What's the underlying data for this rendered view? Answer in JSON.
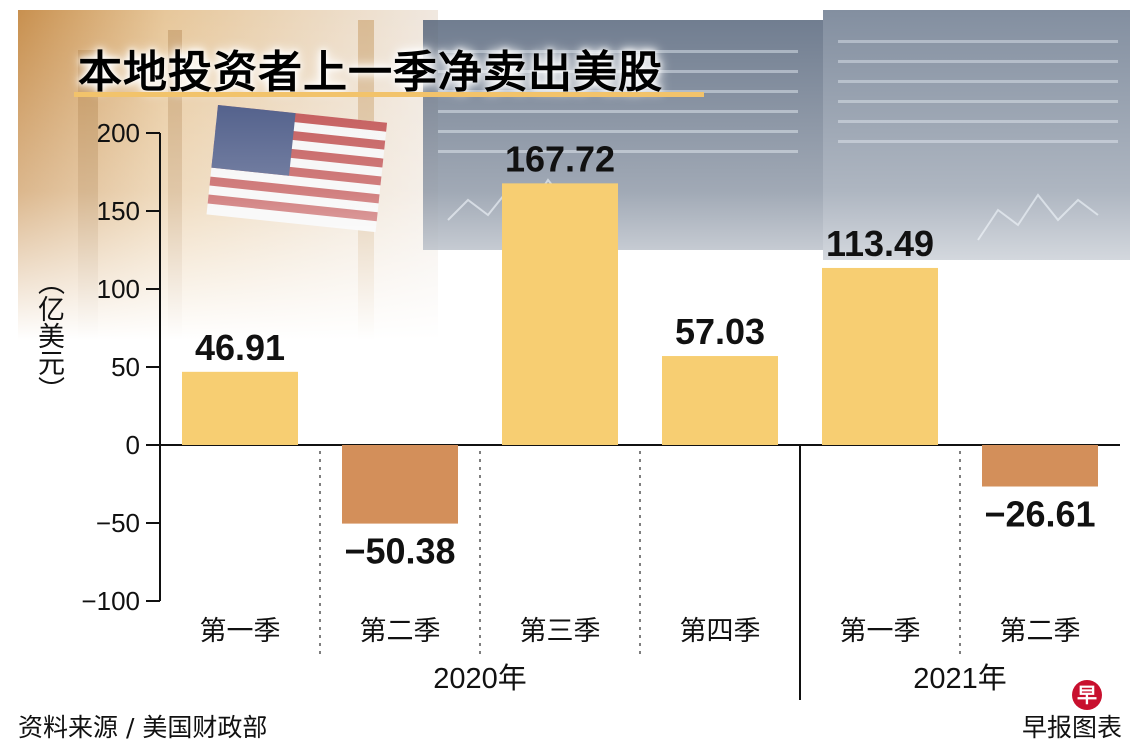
{
  "chart_data": {
    "type": "bar",
    "title": "本地投资者上一季净卖出美股",
    "ylabel": "（亿美元）",
    "ylim": [
      -100,
      200
    ],
    "yticks": [
      "200",
      "150",
      "100",
      "50",
      "0",
      "−50",
      "−100"
    ],
    "categories": [
      "第一季",
      "第二季",
      "第三季",
      "第四季",
      "第一季",
      "第二季"
    ],
    "groups": [
      {
        "label": "2020年",
        "categories": [
          "第一季",
          "第二季",
          "第三季",
          "第四季"
        ]
      },
      {
        "label": "2021年",
        "categories": [
          "第一季",
          "第二季"
        ]
      }
    ],
    "values": [
      46.91,
      -50.38,
      167.72,
      57.03,
      113.49,
      -26.61
    ],
    "value_labels": [
      "46.91",
      "−50.38",
      "167.72",
      "57.03",
      "113.49",
      "−26.61"
    ],
    "positive_color": "#f7ce72",
    "negative_color": "#d38f5a",
    "grid": false
  },
  "footer": {
    "source": "资料来源 / 美国财政部",
    "credit": "早报图表",
    "logo_glyph": "早"
  }
}
